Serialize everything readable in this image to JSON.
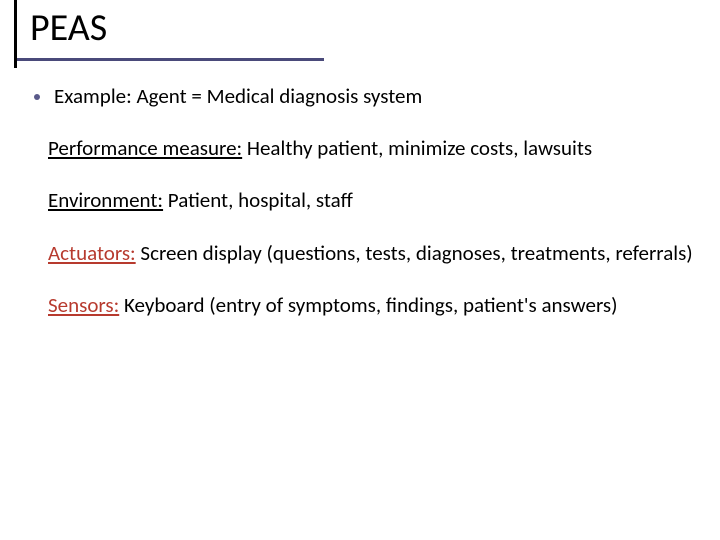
{
  "title": "PEAS",
  "colors": {
    "title_underline": "#4a4a7a",
    "title_vbar": "#000000",
    "bullet_dot": "#5a5a8a",
    "term_red": "#b73a2e",
    "text": "#000000",
    "background": "#ffffff"
  },
  "typography": {
    "title_fontsize": 38,
    "body_fontsize": 21,
    "font_family": "Calibri"
  },
  "bullet": {
    "text": "Example: Agent = Medical diagnosis system"
  },
  "sections": [
    {
      "term": "Performance measure:",
      "term_style": "black",
      "rest": " Healthy patient, minimize costs, lawsuits"
    },
    {
      "term": "Environment:",
      "term_style": "black",
      "rest": " Patient, hospital, staff"
    },
    {
      "term": "Actuators:",
      "term_style": "red",
      "rest": " Screen display (questions, tests, diagnoses, treatments, referrals)"
    },
    {
      "term": "Sensors:",
      "term_style": "red",
      "rest": " Keyboard (entry of symptoms, findings, patient's answers)"
    }
  ]
}
